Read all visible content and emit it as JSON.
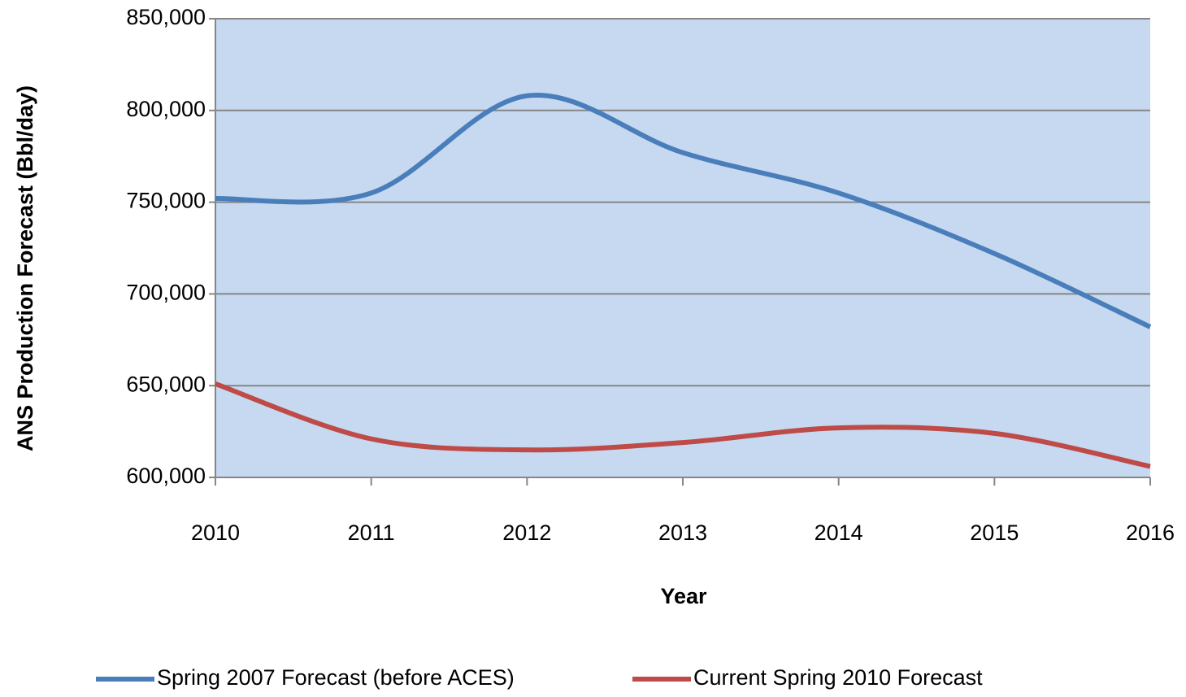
{
  "chart_data": {
    "type": "line",
    "x_label": "Year",
    "y_label": "ANS Production Forecast  (Bbl/day)",
    "x": [
      2010,
      2011,
      2012,
      2013,
      2014,
      2015,
      2016
    ],
    "xlim": [
      2010,
      2016
    ],
    "xticks": [
      2010,
      2011,
      2012,
      2013,
      2014,
      2015,
      2016
    ],
    "ylim": [
      600000,
      850000
    ],
    "yticks": [
      {
        "value": 600000,
        "label": "600,000"
      },
      {
        "value": 650000,
        "label": "650,000"
      },
      {
        "value": 700000,
        "label": "700,000"
      },
      {
        "value": 750000,
        "label": "750,000"
      },
      {
        "value": 800000,
        "label": "800,000"
      },
      {
        "value": 850000,
        "label": "850,000"
      }
    ],
    "grid": true,
    "smooth": true,
    "legend": "bottom",
    "background": "#c6d9f0",
    "series": [
      {
        "name": "Spring 2007 Forecast (before ACES)",
        "color": "#4a7ebb",
        "values": [
          752000,
          755000,
          808000,
          777000,
          755000,
          722000,
          682000
        ]
      },
      {
        "name": "Current Spring 2010 Forecast",
        "color": "#be4b48",
        "values": [
          651000,
          621000,
          615000,
          619000,
          627000,
          624000,
          606000
        ]
      }
    ]
  }
}
